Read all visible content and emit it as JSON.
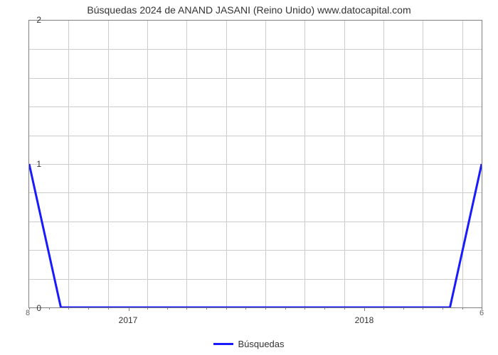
{
  "chart": {
    "type": "line",
    "title": "Búsquedas 2024 de ANAND JASANI (Reino Unido) www.datocapital.com",
    "title_fontsize": 14,
    "background_color": "#ffffff",
    "grid_color": "#cccccc",
    "axis_color": "#808080",
    "line_color": "#1a1aff",
    "line_width": 3,
    "y_axis": {
      "min": 0,
      "max": 2,
      "ticks": [
        0,
        1,
        2
      ],
      "minor_divisions": 5
    },
    "x_axis": {
      "start_label": "8",
      "end_label": "6",
      "major_ticks": [
        "2017",
        "2018"
      ],
      "major_tick_positions_pct": [
        22,
        74
      ],
      "minor_tick_positions_pct": [
        0,
        4.35,
        8.7,
        13.05,
        17.4,
        22,
        26.1,
        30.45,
        34.8,
        39.15,
        43.5,
        47.85,
        52.2,
        56.55,
        60.9,
        65.25,
        69.6,
        74,
        78.3,
        82.65,
        87,
        91.35,
        95.7,
        100
      ]
    },
    "legend": {
      "label": "Búsquedas",
      "color": "#1a1aff"
    },
    "series": {
      "name": "Búsquedas",
      "points": [
        {
          "x_pct": 0,
          "y": 1
        },
        {
          "x_pct": 7,
          "y": 0
        },
        {
          "x_pct": 93,
          "y": 0
        },
        {
          "x_pct": 100,
          "y": 1
        }
      ]
    }
  }
}
